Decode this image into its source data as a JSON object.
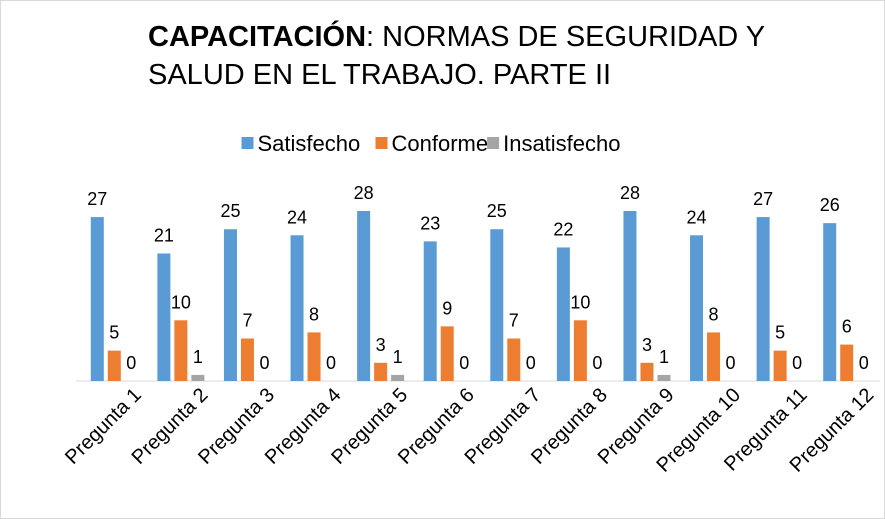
{
  "chart_data": {
    "type": "bar",
    "title": [
      "CAPACITACIÓN",
      ": NORMAS DE SEGURIDAD Y SALUD EN EL TRABAJO. PARTE II"
    ],
    "categories": [
      "Pregunta 1",
      "Pregunta 2",
      "Pregunta 3",
      "Pregunta 4",
      "Pregunta 5",
      "Pregunta 6",
      "Pregunta 7",
      "Pregunta 8",
      "Pregunta 9",
      "Pregunta 10",
      "Pregunta 11",
      "Pregunta 12"
    ],
    "series": [
      {
        "name": "Satisfecho",
        "color": "#5b9bd5",
        "values": [
          27,
          21,
          25,
          24,
          28,
          23,
          25,
          22,
          28,
          24,
          27,
          26
        ]
      },
      {
        "name": "Conforme",
        "color": "#ed7d31",
        "values": [
          5,
          10,
          7,
          8,
          3,
          9,
          7,
          10,
          3,
          8,
          5,
          6
        ]
      },
      {
        "name": "Insatisfecho",
        "color": "#a5a5a5",
        "values": [
          0,
          1,
          0,
          0,
          1,
          0,
          0,
          0,
          1,
          0,
          0,
          0
        ]
      }
    ],
    "legend": "top"
  }
}
